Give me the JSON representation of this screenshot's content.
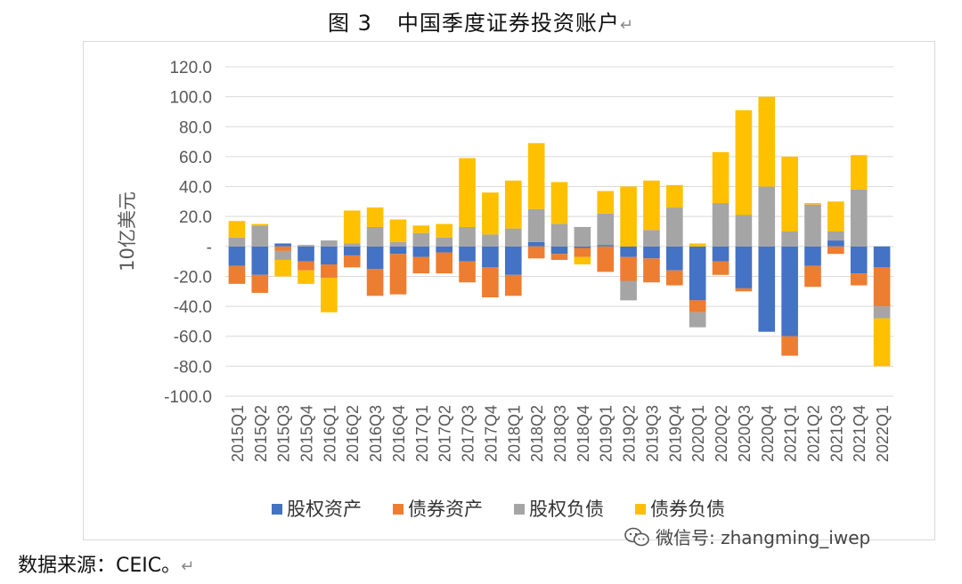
{
  "title": {
    "figure": "图 3",
    "text": "中国季度证券投资账户",
    "mark": "↵"
  },
  "source": {
    "text": "数据来源：CEIC。",
    "mark": "↵"
  },
  "watermark": {
    "text": "微信号: zhangming_iwep",
    "icon": "wechat-icon"
  },
  "colors": {
    "equity_assets": "#4472C4",
    "debt_assets": "#ED7D31",
    "equity_liab": "#A5A5A5",
    "debt_liab": "#FFC000",
    "grid": "#d9d9d9",
    "text": "#595959"
  },
  "chart_data": {
    "type": "bar",
    "stacked": true,
    "title": "中国季度证券投资账户",
    "ylabel": "10亿美元",
    "xlabel": "",
    "ylim": [
      -100,
      120
    ],
    "yticks": [
      120,
      100,
      80,
      60,
      40,
      20,
      0,
      -20,
      -40,
      -60,
      -80,
      -100
    ],
    "ytick_labels": [
      "120.0",
      "100.0",
      "80.0",
      "60.0",
      "40.0",
      "20.0",
      "-",
      "-20.0",
      "-40.0",
      "-60.0",
      "-80.0",
      "-100.0"
    ],
    "grid": true,
    "legend_position": "bottom",
    "categories": [
      "2015Q1",
      "2015Q2",
      "2015Q3",
      "2015Q4",
      "2016Q1",
      "2016Q2",
      "2016Q3",
      "2016Q4",
      "2017Q1",
      "2017Q2",
      "2017Q3",
      "2017Q4",
      "2018Q1",
      "2018Q2",
      "2018Q3",
      "2018Q4",
      "2019Q1",
      "2019Q2",
      "2019Q3",
      "2019Q4",
      "2020Q1",
      "2020Q2",
      "2020Q3",
      "2020Q4",
      "2021Q1",
      "2021Q2",
      "2021Q3",
      "2021Q4",
      "2022Q1"
    ],
    "series": [
      {
        "name": "股权资产",
        "color": "#4472C4",
        "values": [
          -13,
          -19,
          2,
          -10,
          -12,
          -6,
          -15,
          -5,
          -7,
          -4,
          -10,
          -14,
          -19,
          3,
          -5,
          -1,
          1,
          -7,
          -8,
          -16,
          -36,
          -10,
          -28,
          -57,
          -60,
          -13,
          4,
          -18,
          -14
        ]
      },
      {
        "name": "债券资产",
        "color": "#ED7D31",
        "values": [
          -12,
          -12,
          -3,
          -6,
          -9,
          -8,
          -18,
          -27,
          -11,
          -14,
          -14,
          -20,
          -14,
          -8,
          -4,
          -6,
          -17,
          -16,
          -16,
          -10,
          -8,
          -9,
          -2,
          0,
          -13,
          -14,
          -5,
          -8,
          -26
        ]
      },
      {
        "name": "股权负债",
        "color": "#A5A5A5",
        "values": [
          6,
          14,
          -6,
          1,
          4,
          2,
          13,
          3,
          9,
          6,
          13,
          8,
          12,
          22,
          15,
          13,
          21,
          -13,
          11,
          26,
          -10,
          29,
          21,
          40,
          10,
          28,
          6,
          38,
          -8
        ]
      },
      {
        "name": "债券负债",
        "color": "#FFC000",
        "values": [
          11,
          1,
          -11,
          -9,
          -23,
          22,
          13,
          15,
          5,
          9,
          46,
          28,
          32,
          44,
          28,
          -5,
          15,
          40,
          33,
          15,
          2,
          34,
          70,
          60,
          50,
          1,
          20,
          23,
          -32
        ]
      }
    ]
  }
}
